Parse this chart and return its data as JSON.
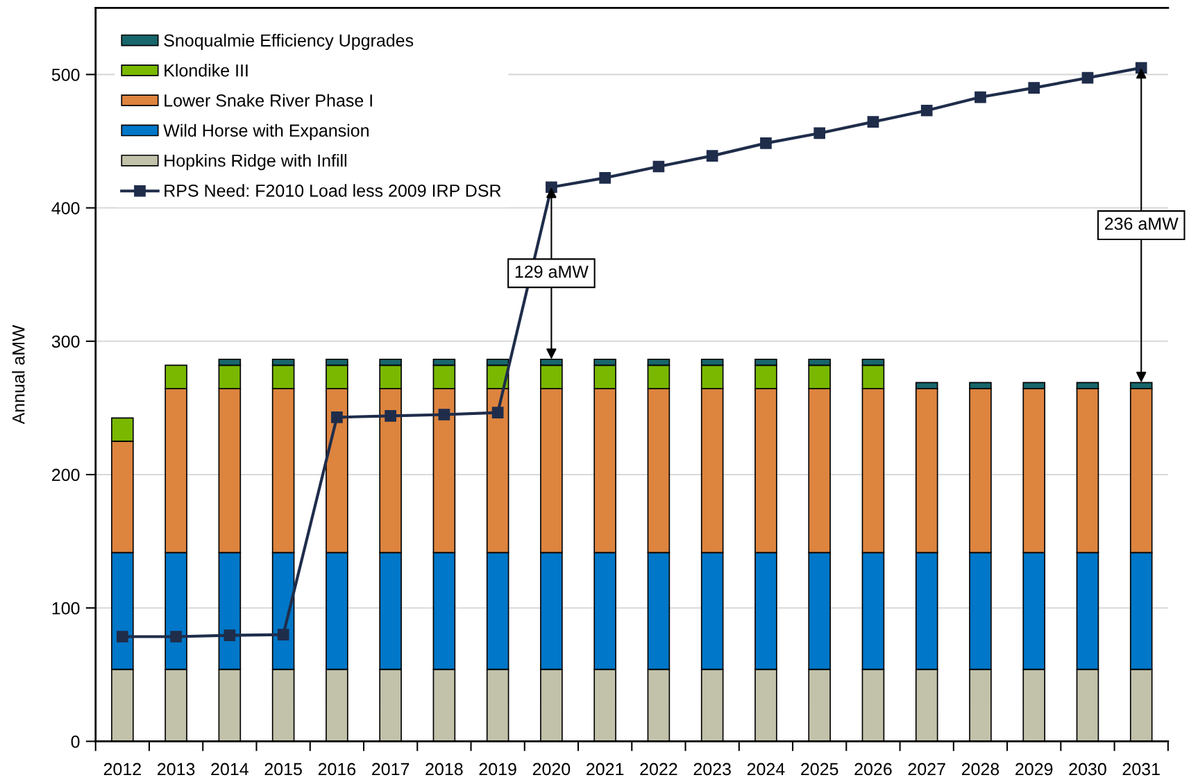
{
  "chart_data": {
    "type": "bar",
    "stacked": true,
    "ylabel": "Annual aMW",
    "categories": [
      "2012",
      "2013",
      "2014",
      "2015",
      "2016",
      "2017",
      "2018",
      "2019",
      "2020",
      "2021",
      "2022",
      "2023",
      "2024",
      "2025",
      "2026",
      "2027",
      "2028",
      "2029",
      "2030",
      "2031"
    ],
    "series": [
      {
        "name": "Hopkins Ridge with Infill",
        "color": "#c2c1aa",
        "values": [
          54,
          54,
          54,
          54,
          54,
          54,
          54,
          54,
          54,
          54,
          54,
          54,
          54,
          54,
          54,
          54,
          54,
          54,
          54,
          54
        ]
      },
      {
        "name": "Wild Horse with Expansion",
        "color": "#0077c8",
        "values": [
          87.5,
          87.5,
          87.5,
          87.5,
          87.5,
          87.5,
          87.5,
          87.5,
          87.5,
          87.5,
          87.5,
          87.5,
          87.5,
          87.5,
          87.5,
          87.5,
          87.5,
          87.5,
          87.5,
          87.5
        ]
      },
      {
        "name": "Lower Snake River Phase I",
        "color": "#dd843f",
        "values": [
          83.5,
          123,
          123,
          123,
          123,
          123,
          123,
          123,
          123,
          123,
          123,
          123,
          123,
          123,
          123,
          123,
          123,
          123,
          123,
          123
        ]
      },
      {
        "name": "Klondike III",
        "color": "#7ab800",
        "values": [
          17.5,
          17.5,
          17.5,
          17.5,
          17.5,
          17.5,
          17.5,
          17.5,
          17.5,
          17.5,
          17.5,
          17.5,
          17.5,
          17.5,
          17.5,
          null,
          null,
          null,
          null,
          null
        ]
      },
      {
        "name": "Snoqualmie Efficiency Upgrades",
        "color": "#17666b",
        "values": [
          null,
          null,
          4.5,
          4.5,
          4.5,
          4.5,
          4.5,
          4.5,
          4.5,
          4.5,
          4.5,
          4.5,
          4.5,
          4.5,
          4.5,
          4.5,
          4.5,
          4.5,
          4.5,
          4.5
        ]
      },
      {
        "name": "RPS Need: F2010 Load less 2009 IRP DSR",
        "type": "line",
        "color": "#1f2d4b",
        "marker": "square",
        "line_style": "solid",
        "values": [
          78.5,
          78.5,
          79.5,
          80,
          243,
          244,
          245,
          246.5,
          415.5,
          422.5,
          431,
          439,
          448.5,
          456,
          464.5,
          473,
          483,
          490,
          497.5,
          505
        ]
      }
    ],
    "ylim": [
      0,
      550
    ],
    "yticks": [
      0,
      100,
      200,
      300,
      400,
      500
    ],
    "grid": "y",
    "legend": "top left",
    "annotations": [
      {
        "text": "129 aMW",
        "x": "2020",
        "y": 415.5
      },
      {
        "text": "236 aMW",
        "x": "2031",
        "y": 505
      }
    ]
  }
}
